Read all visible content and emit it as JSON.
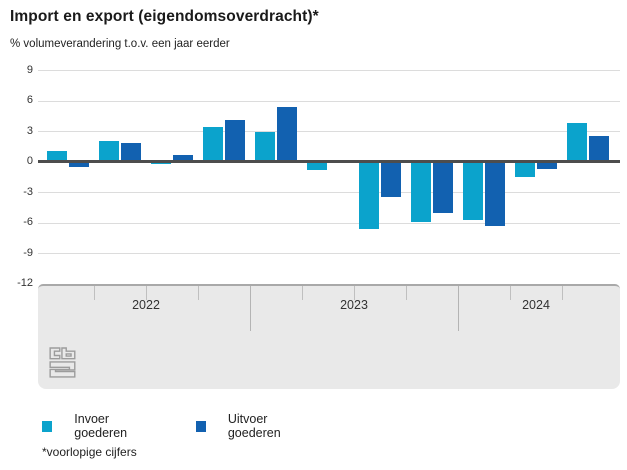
{
  "title": "Import en export (eigendomsoverdracht)*",
  "subtitle": "% volumeverandering t.o.v. een jaar eerder",
  "footnote": "*voorlopige cijfers",
  "colors": {
    "invoer": "#0ba3cc",
    "uitvoer": "#1261b0",
    "grid": "#dcdcdc",
    "zero_axis": "#4d4d4d",
    "band_fill": "#e9e9e9",
    "band_border": "#a9a9a9",
    "logo": "#9c9c9c",
    "text": "#222222"
  },
  "legend": [
    {
      "label": "Invoer goederen",
      "color_key": "invoer"
    },
    {
      "label": "Uitvoer goederen",
      "color_key": "uitvoer"
    }
  ],
  "y_axis": {
    "tick_labels": [
      "9",
      "6",
      "3",
      "0",
      "-3",
      "-6",
      "-9",
      "-12"
    ],
    "tick_values": [
      9,
      6,
      3,
      0,
      -3,
      -6,
      -9,
      -12
    ],
    "max": 9,
    "min": -12
  },
  "x_axis": {
    "year_labels": [
      "2022",
      "2023",
      "2024"
    ],
    "quarters_per_year": [
      4,
      4,
      3
    ]
  },
  "chart_data": {
    "type": "bar",
    "title": "Import en export (eigendomsoverdracht)*",
    "subtitle": "% volumeverandering t.o.v. een jaar eerder",
    "categories": [
      "2022 K1",
      "2022 K2",
      "2022 K3",
      "2022 K4",
      "2023 K1",
      "2023 K2",
      "2023 K3",
      "2023 K4",
      "2024 K1",
      "2024 K2",
      "2024 K3"
    ],
    "series": [
      {
        "name": "Invoer goederen",
        "color": "#0ba3cc",
        "values": [
          1.0,
          2.0,
          -0.2,
          3.4,
          2.9,
          -0.8,
          -6.6,
          -5.9,
          -5.7,
          -1.5,
          3.8
        ]
      },
      {
        "name": "Uitvoer goederen",
        "color": "#1261b0",
        "values": [
          -0.5,
          1.8,
          0.6,
          4.1,
          5.4,
          0.2,
          -3.5,
          -5.1,
          -6.3,
          -0.7,
          2.5
        ]
      }
    ],
    "xlabel": "",
    "ylabel": "% volumeverandering t.o.v. een jaar eerder",
    "ylim": [
      -12,
      9
    ],
    "grid": true,
    "legend_position": "bottom"
  }
}
